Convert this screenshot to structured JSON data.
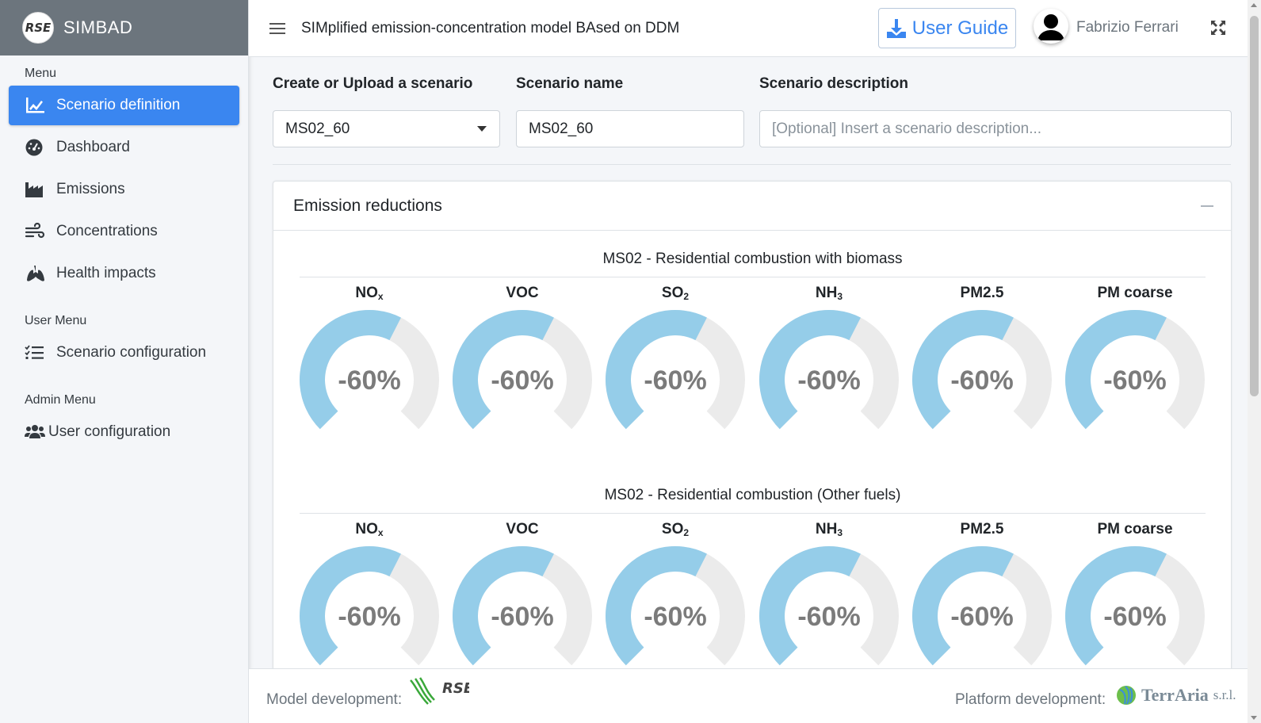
{
  "brand": {
    "logo_text": "RSE",
    "name": "SIMBAD"
  },
  "sidebar": {
    "menu_header": "Menu",
    "items": [
      {
        "label": "Scenario definition",
        "icon": "chart-line-icon",
        "active": true
      },
      {
        "label": "Dashboard",
        "icon": "gauge-icon",
        "active": false
      },
      {
        "label": "Emissions",
        "icon": "industry-icon",
        "active": false
      },
      {
        "label": "Concentrations",
        "icon": "wind-icon",
        "active": false
      },
      {
        "label": "Health impacts",
        "icon": "lungs-icon",
        "active": false
      }
    ],
    "user_menu_header": "User Menu",
    "user_items": [
      {
        "label": "Scenario configuration",
        "icon": "list-check-icon"
      }
    ],
    "admin_menu_header": "Admin Menu",
    "admin_items": [
      {
        "label": "User configuration",
        "icon": "users-icon"
      }
    ]
  },
  "topbar": {
    "title": "SIMplified emission-concentration model BAsed on DDM",
    "guide_label": "User Guide",
    "user_name": "Fabrizio Ferrari"
  },
  "form": {
    "scenario_select_label": "Create or Upload a scenario",
    "scenario_select_value": "MS02_60",
    "scenario_name_label": "Scenario name",
    "scenario_name_value": "MS02_60",
    "scenario_desc_label": "Scenario description",
    "scenario_desc_placeholder": "[Optional] Insert a scenario description..."
  },
  "card": {
    "title": "Emission reductions",
    "sections": [
      {
        "title": "MS02 - Residential combustion with biomass",
        "gauges": [
          {
            "pollutant": "NO",
            "sub": "x",
            "value_text": "-60%",
            "fraction": 0.6
          },
          {
            "pollutant": "VOC",
            "sub": "",
            "value_text": "-60%",
            "fraction": 0.6
          },
          {
            "pollutant": "SO",
            "sub": "2",
            "value_text": "-60%",
            "fraction": 0.6
          },
          {
            "pollutant": "NH",
            "sub": "3",
            "value_text": "-60%",
            "fraction": 0.6
          },
          {
            "pollutant": "PM2.5",
            "sub": "",
            "value_text": "-60%",
            "fraction": 0.6
          },
          {
            "pollutant": "PM coarse",
            "sub": "",
            "value_text": "-60%",
            "fraction": 0.6
          }
        ]
      },
      {
        "title": "MS02 - Residential combustion (Other fuels)",
        "gauges": [
          {
            "pollutant": "NO",
            "sub": "x",
            "value_text": "-60%",
            "fraction": 0.6
          },
          {
            "pollutant": "VOC",
            "sub": "",
            "value_text": "-60%",
            "fraction": 0.6
          },
          {
            "pollutant": "SO",
            "sub": "2",
            "value_text": "-60%",
            "fraction": 0.6
          },
          {
            "pollutant": "NH",
            "sub": "3",
            "value_text": "-60%",
            "fraction": 0.6
          },
          {
            "pollutant": "PM2.5",
            "sub": "",
            "value_text": "-60%",
            "fraction": 0.6
          },
          {
            "pollutant": "PM coarse",
            "sub": "",
            "value_text": "-60%",
            "fraction": 0.6
          }
        ]
      }
    ]
  },
  "footer": {
    "model_dev_label": "Model development:",
    "rse_logo_text": "RSE",
    "platform_dev_label": "Platform development:",
    "terraria_name": "TerrAria",
    "terraria_suffix": "s.r.l."
  },
  "colors": {
    "accent": "#3a86f0",
    "gauge_fill": "#95cde9",
    "gauge_track": "#ebebeb",
    "gauge_text": "#7b7b7b",
    "brand_bg": "#6c757d"
  }
}
